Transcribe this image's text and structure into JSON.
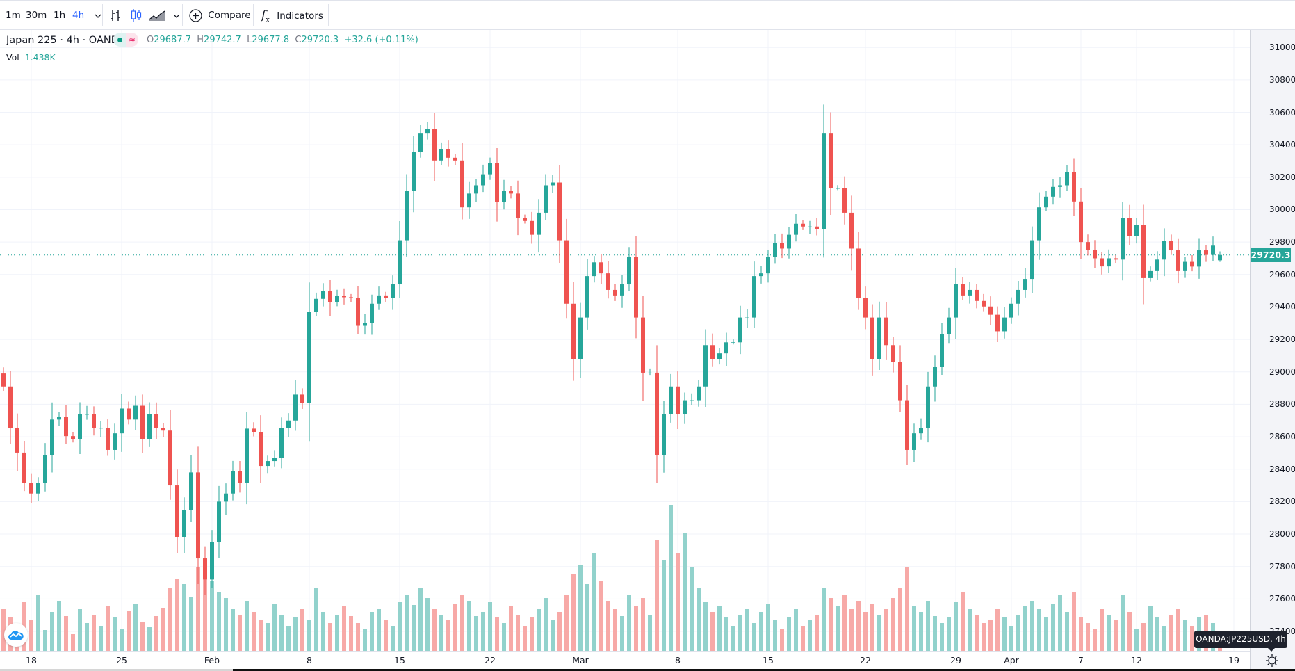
{
  "toolbar": {
    "intervals": [
      "1m",
      "30m",
      "1h",
      "4h"
    ],
    "active_interval": "4h",
    "compare_label": "Compare",
    "indicators_label": "Indicators",
    "accent": "#2962ff"
  },
  "legend": {
    "title": "Japan 225 · 4h · OANDA",
    "o_label": "O",
    "o": "29687.7",
    "h_label": "H",
    "h": "29742.7",
    "l_label": "L",
    "l": "29677.8",
    "c_label": "C",
    "c": "29720.3",
    "change": "+32.6 (+0.11%)",
    "vol_label": "Vol",
    "vol": "1.438K"
  },
  "price_axis": {
    "labels": [
      "31000.0",
      "30800.0",
      "30600.0",
      "30400.0",
      "30200.0",
      "30000.0",
      "29800.0",
      "29600.0",
      "29400.0",
      "29200.0",
      "29000.0",
      "28800.0",
      "28600.0",
      "28400.0",
      "28200.0",
      "28000.0",
      "27800.0",
      "27600.0",
      "27400.0"
    ],
    "current_price": "29720.3"
  },
  "tooltip": "OANDA:JP225USD, 4h",
  "chart_data": {
    "type": "candlestick",
    "ylim": [
      27280,
      31108
    ],
    "grid": true,
    "up_color": "#26a69a",
    "down_color": "#ef5350",
    "x_ticks": [
      {
        "label": "18",
        "at_index": 4
      },
      {
        "label": "25",
        "at_index": 17
      },
      {
        "label": "Feb",
        "at_index": 30
      },
      {
        "label": "8",
        "at_index": 44
      },
      {
        "label": "15",
        "at_index": 57
      },
      {
        "label": "22",
        "at_index": 70
      },
      {
        "label": "Mar",
        "at_index": 83
      },
      {
        "label": "8",
        "at_index": 97
      },
      {
        "label": "15",
        "at_index": 110
      },
      {
        "label": "22",
        "at_index": 124
      },
      {
        "label": "29",
        "at_index": 137
      },
      {
        "label": "Apr",
        "at_index": 145
      },
      {
        "label": "7",
        "at_index": 155
      },
      {
        "label": "12",
        "at_index": 163
      },
      {
        "label": "19",
        "at_index": 177
      }
    ],
    "last_candle": {
      "open": 29687.7,
      "high": 29742.7,
      "low": 29677.8,
      "close": 29720.3
    },
    "close": [
      28910,
      28655,
      28502,
      28316,
      28250,
      28316,
      28485,
      28706,
      28723,
      28604,
      28587,
      28740,
      28740,
      28655,
      28655,
      28519,
      28621,
      28774,
      28706,
      28791,
      28587,
      28740,
      28655,
      28638,
      28300,
      27980,
      28150,
      28380,
      27850,
      27720,
      27950,
      28200,
      28250,
      28390,
      28316,
      28650,
      28630,
      28420,
      28450,
      28470,
      28655,
      28700,
      28860,
      28810,
      29369,
      29450,
      29500,
      29430,
      29470,
      29460,
      29454,
      29284,
      29301,
      29420,
      29471,
      29454,
      29539,
      29811,
      30116,
      30354,
      30473,
      30499,
      30303,
      30371,
      30320,
      30303,
      30014,
      30099,
      30150,
      30218,
      30286,
      30048,
      30116,
      30099,
      29947,
      29930,
      29845,
      29981,
      30150,
      30167,
      29811,
      29420,
      29080,
      29335,
      29590,
      29675,
      29607,
      29505,
      29471,
      29539,
      29709,
      29335,
      28995,
      28995,
      28485,
      28740,
      28910,
      28740,
      28825,
      28825,
      28910,
      29165,
      29080,
      29114,
      29182,
      29182,
      29335,
      29335,
      29590,
      29607,
      29709,
      29794,
      29760,
      29845,
      29913,
      29896,
      29896,
      29879,
      30473,
      30133,
      30133,
      29981,
      29760,
      29454,
      29335,
      29080,
      29335,
      29165,
      29063,
      28825,
      28519,
      28621,
      28655,
      28910,
      29029,
      29233,
      29335,
      29539,
      29471,
      29505,
      29437,
      29403,
      29352,
      29250,
      29335,
      29420,
      29505,
      29573,
      29811,
      30014,
      30080,
      30140,
      30150,
      30230,
      30050,
      29800,
      29750,
      29700,
      29650,
      29700,
      29692,
      29950,
      29835,
      29906,
      29578,
      29621,
      29692,
      29806,
      29749,
      29621,
      29678,
      29649,
      29749,
      29721,
      29778,
      29720.3
    ],
    "volume_k": [
      3.0,
      2.4,
      1.8,
      3.5,
      2.2,
      4.0,
      1.5,
      2.8,
      3.6,
      2.5,
      1.2,
      3.0,
      2.0,
      2.6,
      1.8,
      3.2,
      2.4,
      1.6,
      2.9,
      3.4,
      2.1,
      1.7,
      2.5,
      3.1,
      4.5,
      5.2,
      4.8,
      3.9,
      6.0,
      5.5,
      5.0,
      4.2,
      3.8,
      3.0,
      2.6,
      3.6,
      2.8,
      2.2,
      2.0,
      3.4,
      2.6,
      1.8,
      2.4,
      3.0,
      2.2,
      4.5,
      2.8,
      2.0,
      2.6,
      3.2,
      2.5,
      2.0,
      1.6,
      2.8,
      3.0,
      2.2,
      1.8,
      3.5,
      4.0,
      3.3,
      4.5,
      3.8,
      3.0,
      2.6,
      2.2,
      3.4,
      4.0,
      3.6,
      2.5,
      2.8,
      3.5,
      2.4,
      2.0,
      3.2,
      2.6,
      1.8,
      2.4,
      3.0,
      3.8,
      2.2,
      2.8,
      4.0,
      5.5,
      6.2,
      4.8,
      7.0,
      5.0,
      3.6,
      3.0,
      2.5,
      4.0,
      3.2,
      3.8,
      2.6,
      8.0,
      6.5,
      10.5,
      7.0,
      8.5,
      6.0,
      4.5,
      3.5,
      2.8,
      3.2,
      2.4,
      1.8,
      2.6,
      3.0,
      2.0,
      2.8,
      3.4,
      2.2,
      1.6,
      2.4,
      3.0,
      1.8,
      2.2,
      2.6,
      4.5,
      3.8,
      3.2,
      4.0,
      3.0,
      3.6,
      2.8,
      3.4,
      2.6,
      3.0,
      3.8,
      4.5,
      6.0,
      3.2,
      2.8,
      3.6,
      2.5,
      2.0,
      2.4,
      3.5,
      4.2,
      3.0,
      2.6,
      2.0,
      2.2,
      3.0,
      2.4,
      1.8,
      2.6,
      3.2,
      3.6,
      3.0,
      2.4,
      3.4,
      4.0,
      2.8,
      4.2,
      2.4,
      2.0,
      1.6,
      3.0,
      2.6,
      2.2,
      4.0,
      2.8,
      1.6,
      2.0,
      3.2,
      2.4,
      1.8,
      2.6,
      3.0,
      2.2,
      1.8,
      2.4,
      2.6,
      2.0,
      1.438
    ]
  }
}
